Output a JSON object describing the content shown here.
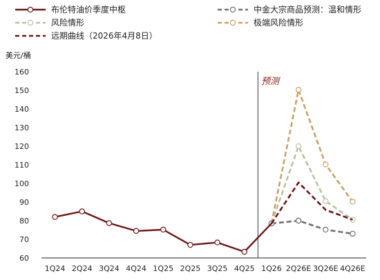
{
  "chart_data": {
    "type": "line",
    "ylabel": "美元/桶",
    "ylim": [
      60,
      160
    ],
    "yticks": [
      60,
      70,
      80,
      90,
      100,
      110,
      120,
      130,
      140,
      150,
      160
    ],
    "categories": [
      "1Q24",
      "2Q24",
      "3Q24",
      "4Q24",
      "1Q25",
      "2Q25",
      "3Q25",
      "4Q25",
      "1Q26",
      "2Q26E",
      "3Q26E",
      "4Q26E"
    ],
    "forecast_label": "预测",
    "forecast_divider_after": "4Q25",
    "legend_placement": "top",
    "series": [
      {
        "name": "布伦特油价季度中枢",
        "color": "#6b1515",
        "style": "solid-marker",
        "values": [
          82,
          85,
          78.7,
          74.5,
          75.2,
          67,
          68.3,
          63.3,
          null,
          null,
          null,
          null
        ]
      },
      {
        "name": "中金大宗商品预测：温和情形",
        "color": "#6e6e6e",
        "style": "dashed-marker",
        "values": [
          null,
          null,
          null,
          null,
          null,
          null,
          null,
          null,
          78.5,
          80,
          75.2,
          73
        ]
      },
      {
        "name": "风险情形",
        "color": "#b8c2a2",
        "style": "dashed-marker",
        "values": [
          null,
          null,
          null,
          null,
          null,
          null,
          null,
          null,
          78.5,
          120,
          90.5,
          80.5
        ]
      },
      {
        "name": "极端风险情形",
        "color": "#c8a168",
        "style": "dashed-marker",
        "values": [
          null,
          null,
          null,
          null,
          null,
          null,
          null,
          null,
          78.5,
          150.3,
          110.2,
          90.2
        ]
      },
      {
        "name": "远期曲线（2026年4月8日）",
        "color": "#6b1515",
        "style": "dashed",
        "values": [
          null,
          null,
          null,
          null,
          null,
          null,
          null,
          null,
          78.5,
          100.5,
          85.8,
          80.5
        ]
      }
    ],
    "bridge": {
      "from": "4Q25",
      "to": "1Q26",
      "from_value": 63.3,
      "to_value": 78.5
    }
  }
}
